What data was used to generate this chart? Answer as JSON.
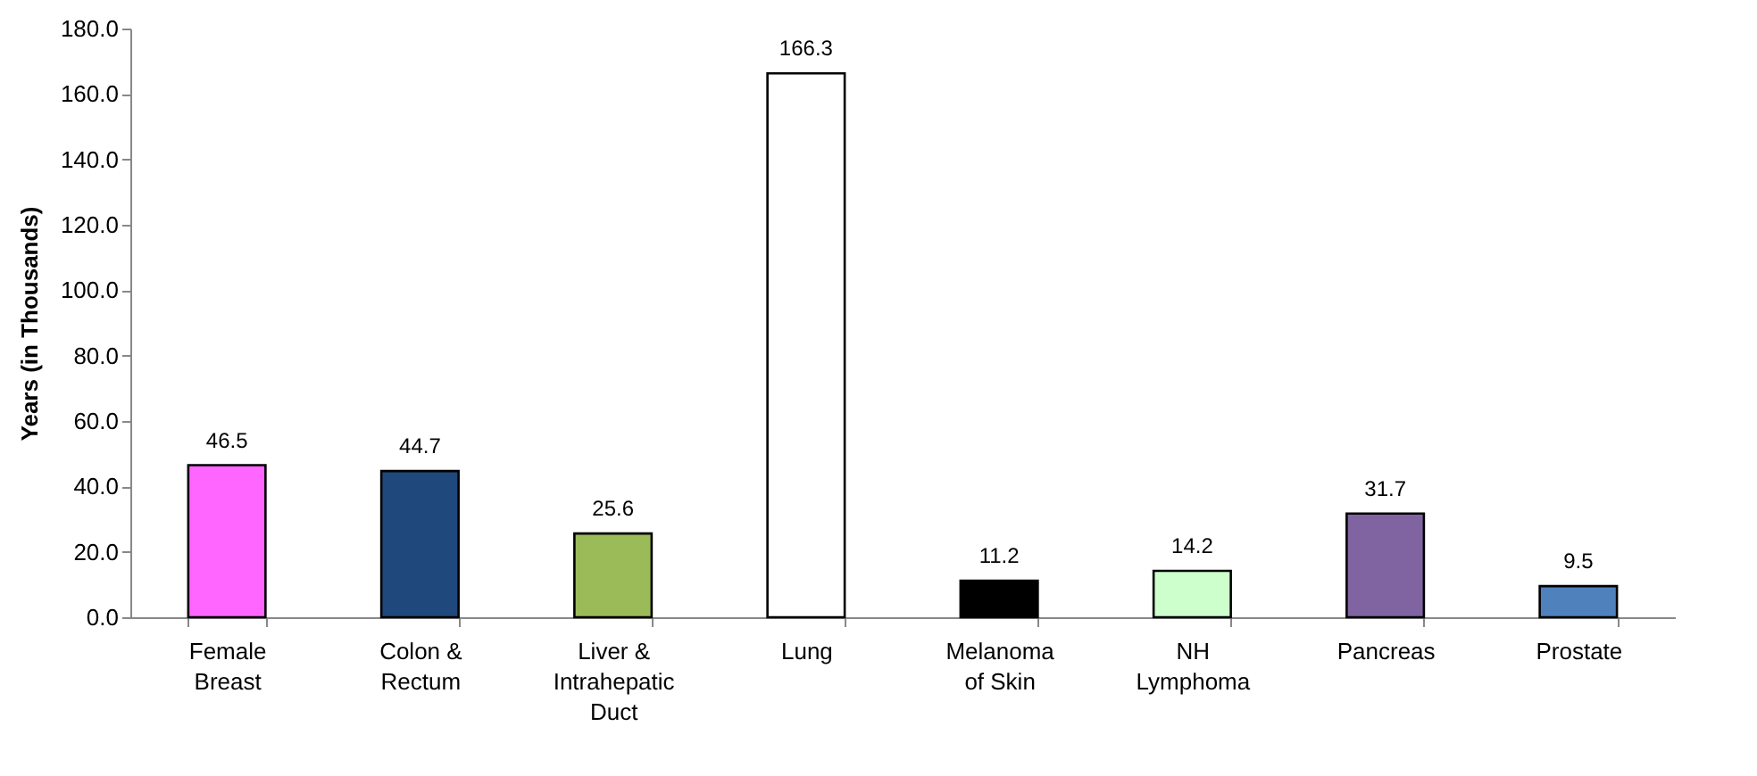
{
  "chart_data": {
    "type": "bar",
    "ylabel": "Years (in Thousands)",
    "categories": [
      "Female\nBreast",
      "Colon &\nRectum",
      "Liver &\nIntrahepatic\nDuct",
      "Lung",
      "Melanoma\nof Skin",
      "NH\nLymphoma",
      "Pancreas",
      "Prostate"
    ],
    "values": [
      46.5,
      44.7,
      25.6,
      166.3,
      11.2,
      14.2,
      31.7,
      9.5
    ],
    "colors": [
      "#ff66ff",
      "#1f497d",
      "#9bbb59",
      "#ffffff",
      "#000000",
      "#ccffcc",
      "#8064a2",
      "#4f81bd"
    ],
    "value_labels": [
      "46.5",
      "44.7",
      "25.6",
      "166.3",
      "11.2",
      "14.2",
      "31.7",
      "9.5"
    ],
    "ylim": [
      0,
      180
    ],
    "yticks": [
      {
        "value": 0,
        "label": "0.0"
      },
      {
        "value": 20,
        "label": "20.0"
      },
      {
        "value": 40,
        "label": "40.0"
      },
      {
        "value": 60,
        "label": "60.0"
      },
      {
        "value": 80,
        "label": "80.0"
      },
      {
        "value": 100,
        "label": "100.0"
      },
      {
        "value": 120,
        "label": "120.0"
      },
      {
        "value": 140,
        "label": "140.0"
      },
      {
        "value": 160,
        "label": "160.0"
      },
      {
        "value": 180,
        "label": "180.0"
      }
    ],
    "grid": false,
    "legend": false
  }
}
